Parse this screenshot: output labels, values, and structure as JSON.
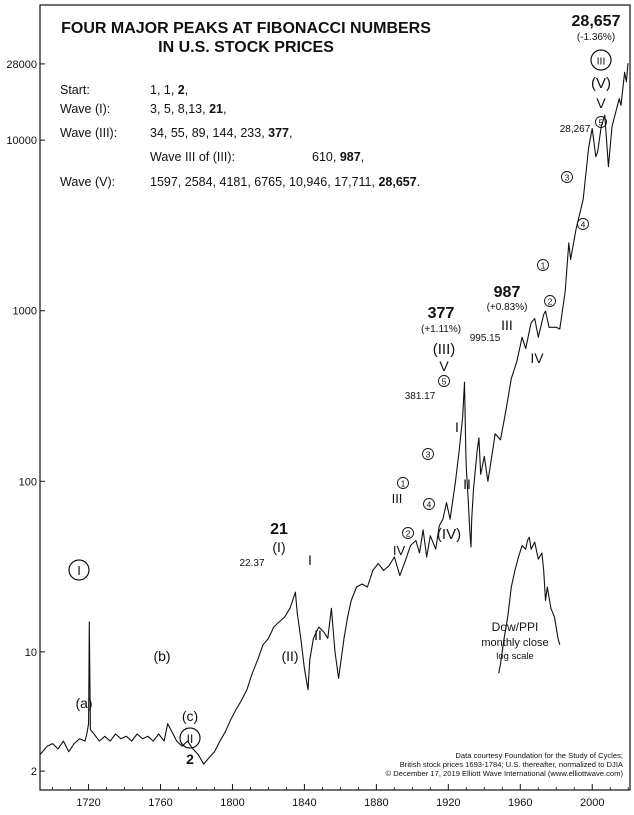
{
  "chart_data": {
    "type": "line",
    "title_lines": [
      "FOUR MAJOR PEAKS AT FIBONACCI NUMBERS",
      "IN U.S. STOCK PRICES"
    ],
    "yscale": "log",
    "xlim": [
      1693,
      2021
    ],
    "ylim": [
      1.55,
      62000
    ],
    "x_ticks": [
      1720,
      1760,
      1800,
      1840,
      1880,
      1920,
      1960,
      2000
    ],
    "y_ticks": [
      2,
      10,
      100,
      1000,
      10000,
      28000
    ],
    "y_tick_labels": [
      "2",
      "10",
      "100",
      "1000",
      "10000",
      "28000"
    ],
    "grid": false,
    "fibonacci_table": [
      {
        "label": "Start:",
        "numbers": "1, 1, ",
        "bold": "2",
        "tail": ","
      },
      {
        "label": "Wave (I):",
        "numbers": "3, 5, 8,13, ",
        "bold": "21",
        "tail": ","
      },
      {
        "label": "Wave (III):",
        "numbers": "34, 55, 89, 144, 233, ",
        "bold": "377",
        "tail": ","
      },
      {
        "label": "Wave III of (III):",
        "numbers": "610, ",
        "bold": "987",
        "tail": ","
      },
      {
        "label": "Wave (V):",
        "numbers": "1597, 2584, 4181, 6765, 10,946, 17,711, ",
        "bold": "28,657",
        "tail": "."
      }
    ],
    "series": [
      {
        "x": [
          1693,
          1697,
          1700,
          1703,
          1706,
          1709,
          1712,
          1715,
          1718,
          1719,
          1720,
          1720.4,
          1721,
          1723,
          1726,
          1729,
          1732,
          1735,
          1738,
          1741,
          1744,
          1747,
          1750,
          1753,
          1756,
          1759,
          1762,
          1764,
          1767,
          1769,
          1772,
          1775,
          1778,
          1781,
          1784,
          1787,
          1790,
          1793,
          1796,
          1799,
          1802,
          1805,
          1808,
          1811,
          1814,
          1817,
          1820,
          1823,
          1826,
          1829,
          1832,
          1835,
          1836,
          1838,
          1840,
          1842,
          1843,
          1845,
          1848,
          1851,
          1853,
          1855,
          1857,
          1859,
          1862,
          1864,
          1866,
          1869,
          1872,
          1875,
          1878,
          1881,
          1884,
          1887,
          1890,
          1893,
          1896,
          1899,
          1902,
          1904,
          1906,
          1908,
          1910,
          1913,
          1915,
          1917,
          1919,
          1921,
          1924,
          1926,
          1928,
          1929,
          1929.7,
          1930,
          1931,
          1932,
          1932.6,
          1933,
          1934,
          1936,
          1937,
          1938,
          1940,
          1942,
          1945,
          1946,
          1949,
          1952,
          1955,
          1958,
          1961,
          1963,
          1966,
          1968,
          1970,
          1973,
          1974,
          1976,
          1980,
          1982,
          1985,
          1987,
          1988,
          1991,
          1995,
          1998,
          2000,
          2002,
          2003,
          2005,
          2007,
          2009,
          2011,
          2013,
          2015,
          2016,
          2018,
          2019,
          2019.9
        ],
        "values": [
          2.5,
          2.8,
          2.9,
          2.7,
          3.0,
          2.6,
          2.9,
          3.1,
          3.0,
          3.3,
          3.8,
          15,
          3.5,
          3.3,
          3.0,
          3.2,
          3.0,
          3.3,
          3.1,
          3.2,
          3.0,
          3.3,
          3.1,
          3.2,
          3.0,
          3.3,
          3.0,
          3.8,
          3.3,
          3.0,
          2.8,
          3.0,
          2.7,
          2.5,
          2.2,
          2.4,
          2.6,
          3.0,
          3.4,
          4.0,
          4.6,
          5.2,
          6.0,
          7.5,
          9.0,
          11.0,
          12.0,
          14.0,
          15.0,
          16.0,
          18.0,
          22.37,
          17.0,
          12.0,
          8.0,
          6.0,
          9.0,
          12.0,
          14.0,
          13.0,
          12.0,
          18.0,
          10.0,
          7.0,
          12.0,
          16.0,
          20.0,
          24.0,
          25.0,
          24.0,
          30.0,
          33.0,
          30.0,
          32.0,
          36.0,
          28.0,
          34.0,
          42.0,
          45.0,
          38.0,
          52.0,
          36.0,
          48.0,
          40.0,
          55.0,
          60.0,
          75.0,
          60.0,
          100.0,
          150.0,
          240.0,
          381.17,
          150.0,
          120.0,
          80.0,
          50.0,
          41.22,
          60.0,
          90.0,
          150.0,
          180.0,
          110.0,
          140.0,
          100.0,
          160.0,
          190.0,
          175.0,
          260.0,
          400.0,
          500.0,
          700.0,
          600.0,
          850.0,
          900.0,
          700.0,
          950.0,
          995.15,
          800.0,
          800.0,
          780.0,
          1300.0,
          2500.0,
          2000.0,
          3000.0,
          4500.0,
          9000.0,
          11700.0,
          8000.0,
          8500.0,
          12000.0,
          14000.0,
          7000.0,
          12000.0,
          14500.0,
          17500.0,
          16000.0,
          25000.0,
          22000.0,
          28267.0
        ]
      },
      {
        "name": "Dow/PPI",
        "x": [
          1948,
          1949,
          1951,
          1953,
          1955,
          1957,
          1959,
          1961,
          1963,
          1964,
          1965,
          1966,
          1968,
          1970,
          1972,
          1973,
          1974,
          1975,
          1977,
          1979,
          1981,
          1982
        ],
        "values": [
          7.5,
          8.5,
          12.0,
          16.0,
          24.0,
          30.0,
          36.0,
          42.0,
          40.0,
          45.0,
          47.0,
          40.0,
          44.0,
          35.0,
          38.0,
          30.0,
          20.0,
          24.0,
          18.0,
          16.0,
          12.0,
          11.0
        ]
      }
    ],
    "labels": {
      "peak_21": "21",
      "value_22": "22.37",
      "wave_I_paren": "(I)",
      "wave_II_paren": "(II)",
      "peak_377": "377",
      "pct_377": "(+1.11%)",
      "wave_III_paren": "(III)",
      "wave_V_small": "V",
      "value_381": "381.17",
      "wave_IV_paren": "(IV)",
      "peak_987": "987",
      "pct_987": "(+0.83%)",
      "wave_III_small": "III",
      "value_995": "995.15",
      "wave_IV_small": "IV",
      "peak_28657": "28,657",
      "pct_28657": "(-1.36%)",
      "wave_V_paren": "(V)",
      "wave_V_small2": "V",
      "value_28267": "28,267",
      "wave_I_small": "I",
      "wave_II_small": "II",
      "wave_III_small2": "III",
      "wave_IV_small2": "IV",
      "wave_I_small3": "I",
      "wave_II_small3": "II",
      "circ_I": "I",
      "circ_II": "II",
      "circ_III": "III",
      "label_a": "(a)",
      "label_b": "(b)",
      "label_c": "(c)",
      "bottom_2": "2",
      "n1": "1",
      "n2": "2",
      "n3": "3",
      "n4": "4",
      "n5": "5",
      "inset_line1": "Dow/PPI",
      "inset_line2": "monthly close",
      "inset_line3": "log scale"
    },
    "credit_lines": [
      "Data courtesy Foundation for the Study of Cycles;",
      "British stock prices 1693-1784; U.S. thereafter, normalized to DJIA",
      "© December 17, 2019 Elliott Wave International (www.elliottwave.com)"
    ]
  },
  "colors": {
    "line": "#111111",
    "background": "#ffffff",
    "frame": "#111111"
  }
}
